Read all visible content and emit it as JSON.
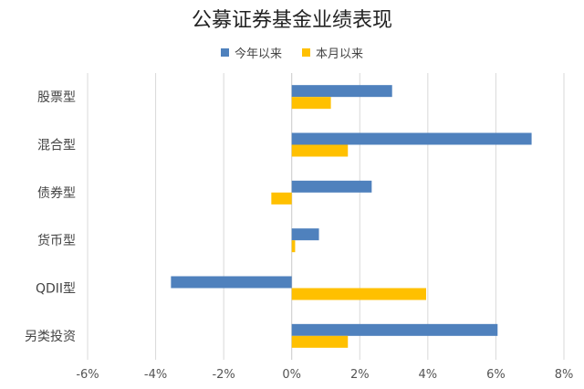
{
  "chart_data": {
    "type": "bar",
    "orientation": "horizontal",
    "title": "公募证券基金业绩表现",
    "categories": [
      "股票型",
      "混合型",
      "债券型",
      "货币型",
      "QDII型",
      "另类投资"
    ],
    "series": [
      {
        "name": "今年以来",
        "color": "#4f81bd",
        "values": [
          2.95,
          7.05,
          2.35,
          0.8,
          -3.55,
          6.05
        ]
      },
      {
        "name": "本月以来",
        "color": "#ffc000",
        "values": [
          1.15,
          1.65,
          -0.6,
          0.1,
          3.95,
          1.65
        ]
      }
    ],
    "xlim": [
      -6,
      8
    ],
    "xticks": [
      "-6%",
      "-4%",
      "-2%",
      "0%",
      "2%",
      "4%",
      "6%",
      "8%"
    ],
    "grid": true,
    "legend_position": "top"
  }
}
